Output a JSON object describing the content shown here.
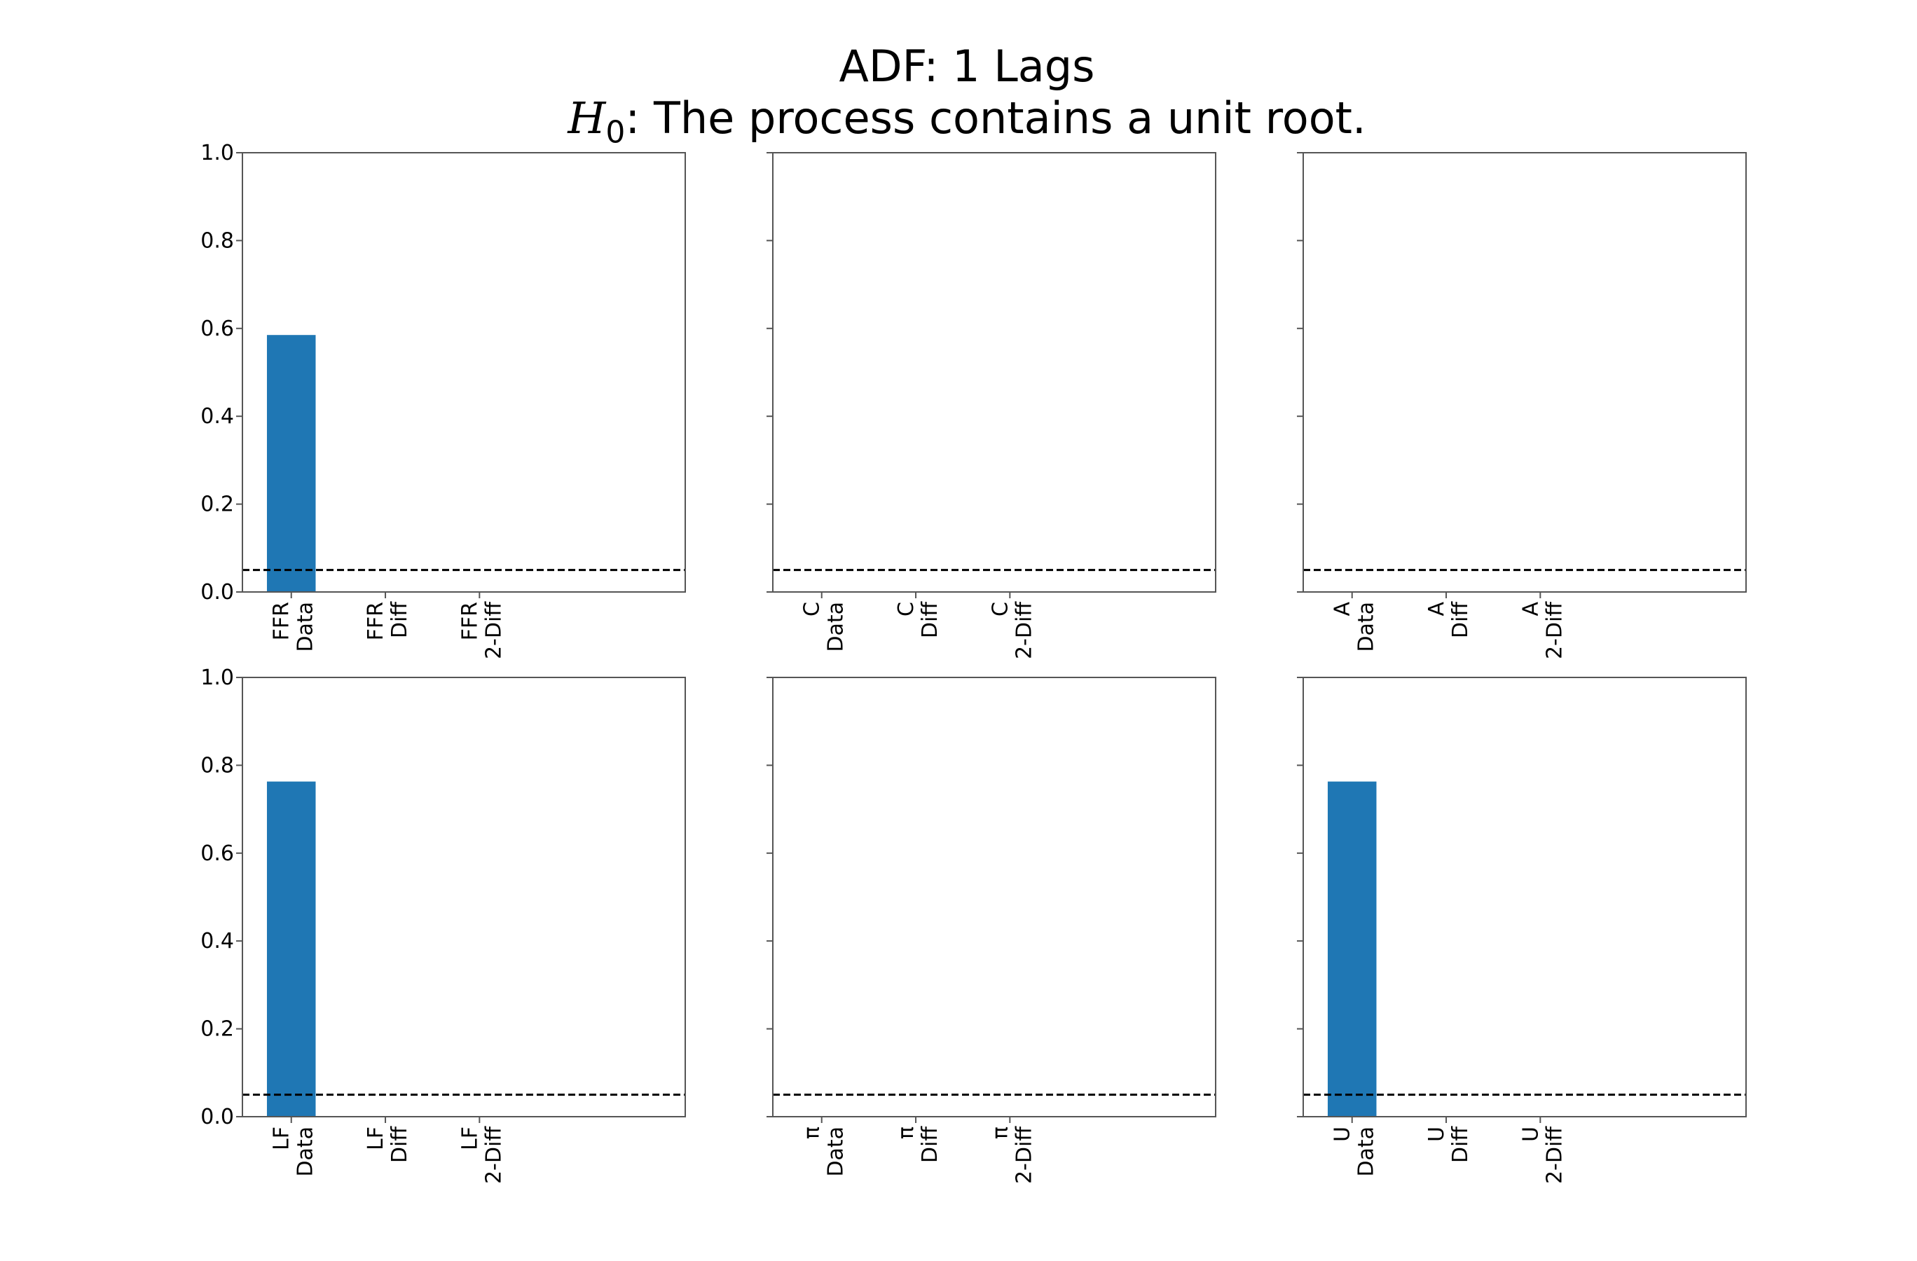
{
  "title": {
    "line1": "ADF: 1 Lags",
    "h0_symbol": "H",
    "h0_sub": "0",
    "line2_rest": ": The process contains a unit root."
  },
  "chart_data": [
    {
      "type": "bar",
      "position": "top-left",
      "categories": [
        [
          "FFR",
          "Data"
        ],
        [
          "FFR",
          "Diff"
        ],
        [
          "FFR",
          "2-Diff"
        ]
      ],
      "values": [
        0.585,
        0,
        0
      ],
      "ylim": [
        0,
        1
      ],
      "threshold": 0.05,
      "yticks": [
        "0.0",
        "0.2",
        "0.4",
        "0.6",
        "0.8",
        "1.0"
      ],
      "show_ytick_labels": true
    },
    {
      "type": "bar",
      "position": "top-center",
      "categories": [
        [
          "C",
          "Data"
        ],
        [
          "C",
          "Diff"
        ],
        [
          "C",
          "2-Diff"
        ]
      ],
      "values": [
        0,
        0,
        0
      ],
      "ylim": [
        0,
        1
      ],
      "threshold": 0.05,
      "yticks": [
        "0.0",
        "0.2",
        "0.4",
        "0.6",
        "0.8",
        "1.0"
      ],
      "show_ytick_labels": false
    },
    {
      "type": "bar",
      "position": "top-right",
      "categories": [
        [
          "A",
          "Data"
        ],
        [
          "A",
          "Diff"
        ],
        [
          "A",
          "2-Diff"
        ]
      ],
      "values": [
        0,
        0,
        0
      ],
      "ylim": [
        0,
        1
      ],
      "threshold": 0.05,
      "yticks": [
        "0.0",
        "0.2",
        "0.4",
        "0.6",
        "0.8",
        "1.0"
      ],
      "show_ytick_labels": false
    },
    {
      "type": "bar",
      "position": "bottom-left",
      "categories": [
        [
          "LF",
          "Data"
        ],
        [
          "LF",
          "Diff"
        ],
        [
          "LF",
          "2-Diff"
        ]
      ],
      "values": [
        0.763,
        0,
        0
      ],
      "ylim": [
        0,
        1
      ],
      "threshold": 0.05,
      "yticks": [
        "0.0",
        "0.2",
        "0.4",
        "0.6",
        "0.8",
        "1.0"
      ],
      "show_ytick_labels": true
    },
    {
      "type": "bar",
      "position": "bottom-center",
      "categories": [
        [
          "π",
          "Data"
        ],
        [
          "π",
          "Diff"
        ],
        [
          "π",
          "2-Diff"
        ]
      ],
      "values": [
        0,
        0,
        0
      ],
      "ylim": [
        0,
        1
      ],
      "threshold": 0.05,
      "yticks": [
        "0.0",
        "0.2",
        "0.4",
        "0.6",
        "0.8",
        "1.0"
      ],
      "show_ytick_labels": false
    },
    {
      "type": "bar",
      "position": "bottom-right",
      "categories": [
        [
          "U",
          "Data"
        ],
        [
          "U",
          "Diff"
        ],
        [
          "U",
          "2-Diff"
        ]
      ],
      "values": [
        0.763,
        0,
        0
      ],
      "ylim": [
        0,
        1
      ],
      "threshold": 0.05,
      "yticks": [
        "0.0",
        "0.2",
        "0.4",
        "0.6",
        "0.8",
        "1.0"
      ],
      "show_ytick_labels": false
    }
  ],
  "colors": {
    "bar": "#1f77b4",
    "threshold_line": "#000000",
    "frame": "#555555"
  }
}
